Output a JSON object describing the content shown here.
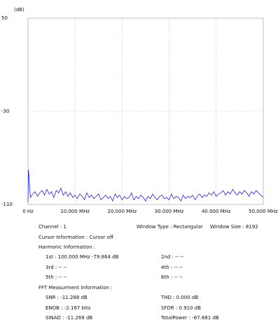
{
  "chart_data": {
    "type": "line",
    "ylabel": "(dB)",
    "xlim": [
      0,
      50
    ],
    "ylim": [
      -110,
      50
    ],
    "xticks": [
      {
        "value": 0,
        "label": "0 Hz"
      },
      {
        "value": 10,
        "label": "10.000 MHz"
      },
      {
        "value": 20,
        "label": "20.000 MHz"
      },
      {
        "value": 30,
        "label": "30.000 MHz"
      },
      {
        "value": 40,
        "label": "40.000 MHz"
      },
      {
        "value": 50,
        "label": "50.000 MHz"
      }
    ],
    "yticks": [
      50,
      -30,
      -110
    ],
    "grid": true,
    "x": [
      0,
      0.1,
      0.5,
      1,
      1.5,
      2,
      2.5,
      3,
      3.5,
      4,
      4.5,
      5,
      5.5,
      6,
      6.5,
      7,
      7.5,
      8,
      8.5,
      9,
      9.5,
      10,
      10.5,
      11,
      11.5,
      12,
      12.5,
      13,
      13.5,
      14,
      14.5,
      15,
      15.5,
      16,
      16.5,
      17,
      17.5,
      18,
      18.5,
      19,
      19.5,
      20,
      20.5,
      21,
      21.5,
      22,
      22.5,
      23,
      23.5,
      24,
      24.5,
      25,
      25.5,
      26,
      26.5,
      27,
      27.5,
      28,
      28.5,
      29,
      29.5,
      30,
      30.5,
      31,
      31.5,
      32,
      32.5,
      33,
      33.5,
      34,
      34.5,
      35,
      35.5,
      36,
      36.5,
      37,
      37.5,
      38,
      38.5,
      39,
      39.5,
      40,
      40.5,
      41,
      41.5,
      42,
      42.5,
      43,
      43.5,
      44,
      44.5,
      45,
      45.5,
      46,
      46.5,
      47,
      47.5,
      48,
      48.5,
      49,
      49.5,
      50
    ],
    "series": [
      {
        "color": "#0000ff",
        "values": [
          -108,
          -80,
          -104,
          -101,
          -99,
          -103,
          -100,
          -98,
          -102,
          -97,
          -101,
          -99,
          -104,
          -98,
          -100,
          -96,
          -102,
          -99,
          -103,
          -100,
          -104,
          -102,
          -105,
          -101,
          -103,
          -106,
          -100,
          -104,
          -102,
          -105,
          -103,
          -101,
          -106,
          -104,
          -102,
          -105,
          -103,
          -107,
          -101,
          -104,
          -102,
          -106,
          -103,
          -105,
          -104,
          -100,
          -106,
          -103,
          -105,
          -102,
          -104,
          -107,
          -103,
          -105,
          -101,
          -104,
          -106,
          -103,
          -102,
          -105,
          -104,
          -106,
          -101,
          -105,
          -103,
          -104,
          -107,
          -102,
          -105,
          -103,
          -104,
          -102,
          -106,
          -103,
          -101,
          -104,
          -102,
          -103,
          -100,
          -102,
          -99,
          -103,
          -101,
          -100,
          -98,
          -102,
          -99,
          -101,
          -97,
          -100,
          -102,
          -99,
          -101,
          -98,
          -100,
          -103,
          -99,
          -101,
          -98,
          -100,
          -102,
          -104
        ]
      }
    ]
  },
  "info": {
    "channel": "Channel : 1",
    "window_type": "Window Type : Rectangular",
    "window_size": "Window Size : 8192",
    "cursor": "Cursor Information :  Cursor off",
    "harmonic_title": "Harmonic Information :",
    "harmonics": [
      "1st : 100.000 MHz  -79.864 dB",
      "2nd : -- --",
      "3rd : -- --",
      "4th : -- --",
      "5th : -- --",
      "6th : -- --"
    ],
    "fft_title": "FFT Measurment Information :",
    "fft": [
      "SNR : -11.288 dB",
      "THD : 0.000 dB",
      "ENOB : -2.167 bits",
      "SFDR : 0.910 dB",
      "SINAD : -11.269 dB",
      "TotalPower : -67.681 dB"
    ]
  }
}
